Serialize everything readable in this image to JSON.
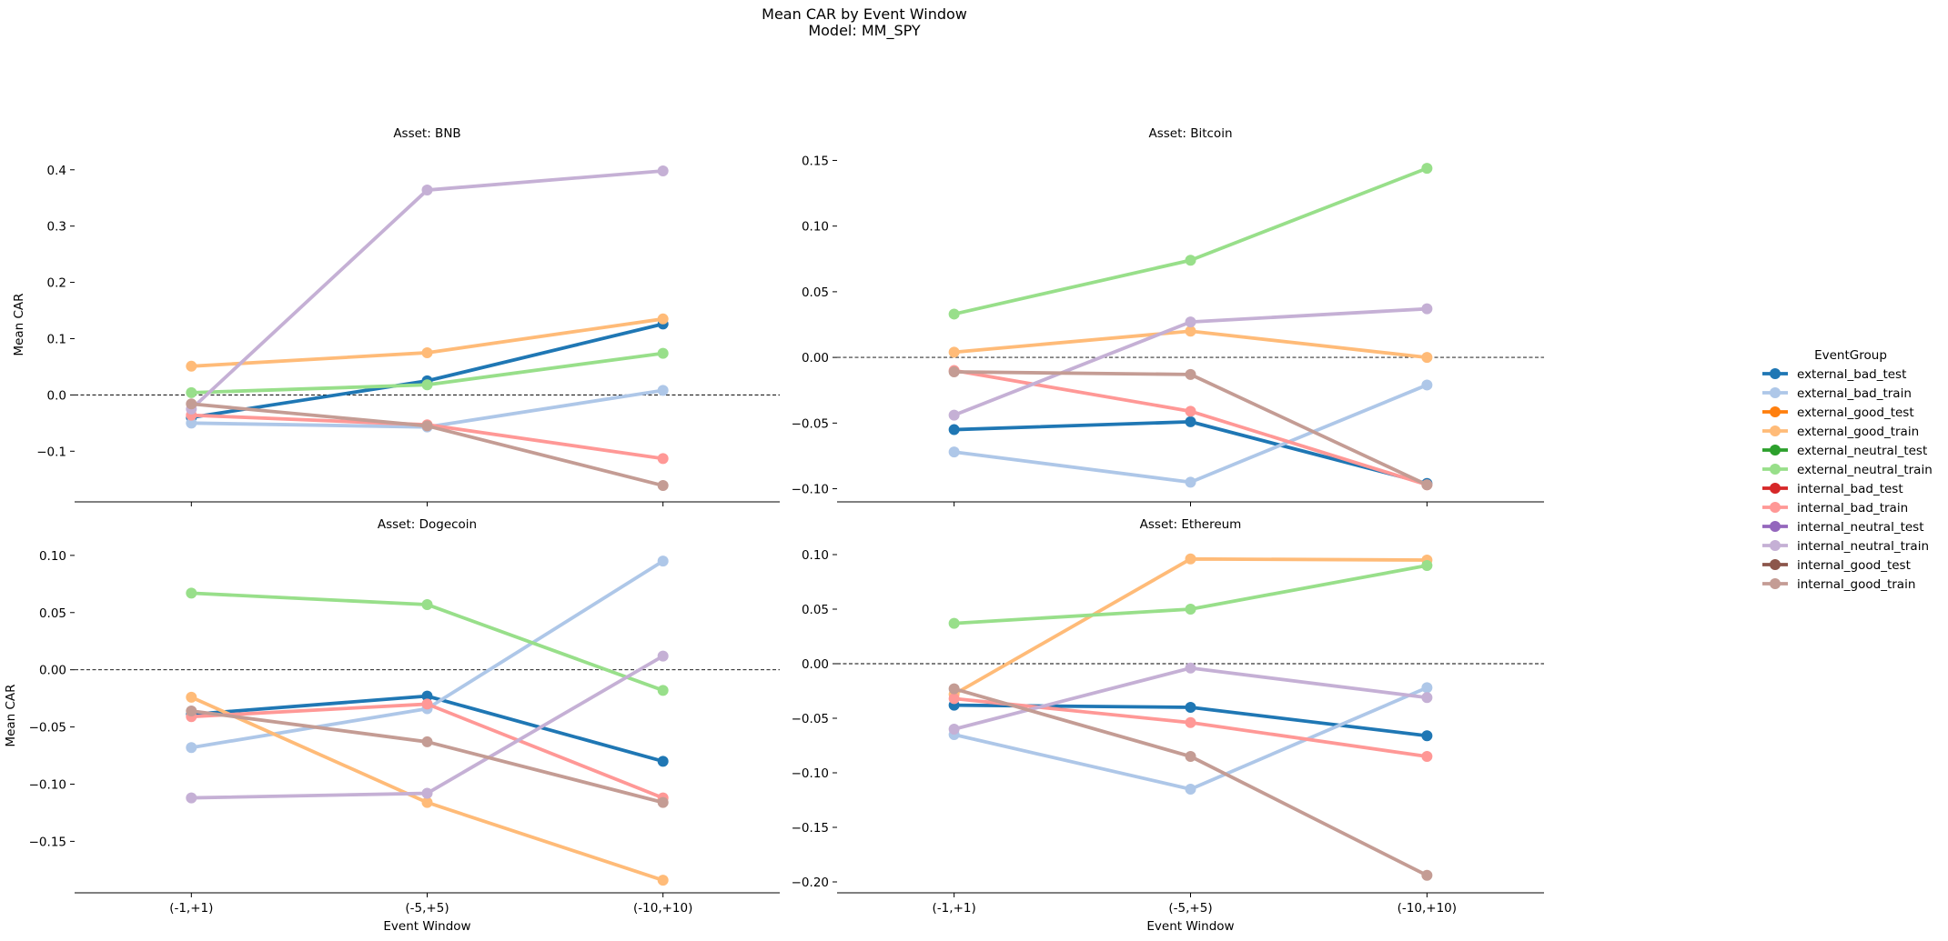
{
  "figure": {
    "title_line1": "Mean CAR by Event Window",
    "title_line2": "Model: MM_SPY",
    "xlabel": "Event Window",
    "ylabel": "Mean CAR"
  },
  "legend": {
    "title": "EventGroup",
    "entries": [
      {
        "label": "external_bad_test",
        "color": "#1f77b4"
      },
      {
        "label": "external_bad_train",
        "color": "#aec7e8"
      },
      {
        "label": "external_good_test",
        "color": "#ff7f0e"
      },
      {
        "label": "external_good_train",
        "color": "#ffbb78"
      },
      {
        "label": "external_neutral_test",
        "color": "#2ca02c"
      },
      {
        "label": "external_neutral_train",
        "color": "#98df8a"
      },
      {
        "label": "internal_bad_test",
        "color": "#d62728"
      },
      {
        "label": "internal_bad_train",
        "color": "#ff9896"
      },
      {
        "label": "internal_neutral_test",
        "color": "#9467bd"
      },
      {
        "label": "internal_neutral_train",
        "color": "#c5b0d5"
      },
      {
        "label": "internal_good_test",
        "color": "#8c564b"
      },
      {
        "label": "internal_good_train",
        "color": "#c49c94"
      }
    ]
  },
  "chart_data": [
    {
      "type": "line",
      "title": "Asset: BNB",
      "categories": [
        "(-1,+1)",
        "(-5,+5)",
        "(-10,+10)"
      ],
      "ylim": [
        -0.19,
        0.44
      ],
      "yticks": [
        -0.1,
        0.0,
        0.1,
        0.2,
        0.3,
        0.4
      ],
      "ytick_labels": [
        "−0.1",
        "0.0",
        "0.1",
        "0.2",
        "0.3",
        "0.4"
      ],
      "show_xlabel": false,
      "show_ylabel": true,
      "series": [
        {
          "name": "external_bad_test",
          "color": "#1f77b4",
          "values": [
            -0.04,
            0.025,
            0.126
          ]
        },
        {
          "name": "external_bad_train",
          "color": "#aec7e8",
          "values": [
            -0.05,
            -0.057,
            0.008
          ]
        },
        {
          "name": "external_good_train",
          "color": "#ffbb78",
          "values": [
            0.051,
            0.075,
            0.135
          ]
        },
        {
          "name": "external_neutral_train",
          "color": "#98df8a",
          "values": [
            0.004,
            0.018,
            0.074
          ]
        },
        {
          "name": "internal_bad_train",
          "color": "#ff9896",
          "values": [
            -0.036,
            -0.053,
            -0.113
          ]
        },
        {
          "name": "internal_neutral_train",
          "color": "#c5b0d5",
          "values": [
            -0.025,
            0.364,
            0.398
          ]
        },
        {
          "name": "internal_good_train",
          "color": "#c49c94",
          "values": [
            -0.016,
            -0.055,
            -0.161
          ]
        }
      ]
    },
    {
      "type": "line",
      "title": "Asset: Bitcoin",
      "categories": [
        "(-1,+1)",
        "(-5,+5)",
        "(-10,+10)"
      ],
      "ylim": [
        -0.11,
        0.16
      ],
      "yticks": [
        -0.1,
        -0.05,
        0.0,
        0.05,
        0.1,
        0.15
      ],
      "ytick_labels": [
        "−0.10",
        "−0.05",
        "0.00",
        "0.05",
        "0.10",
        "0.15"
      ],
      "show_xlabel": false,
      "show_ylabel": false,
      "series": [
        {
          "name": "external_bad_test",
          "color": "#1f77b4",
          "values": [
            -0.055,
            -0.049,
            -0.096
          ]
        },
        {
          "name": "external_bad_train",
          "color": "#aec7e8",
          "values": [
            -0.072,
            -0.095,
            -0.021
          ]
        },
        {
          "name": "external_good_train",
          "color": "#ffbb78",
          "values": [
            0.004,
            0.02,
            0.0
          ]
        },
        {
          "name": "external_neutral_train",
          "color": "#98df8a",
          "values": [
            0.033,
            0.074,
            0.144
          ]
        },
        {
          "name": "internal_bad_train",
          "color": "#ff9896",
          "values": [
            -0.01,
            -0.041,
            -0.097
          ]
        },
        {
          "name": "internal_neutral_train",
          "color": "#c5b0d5",
          "values": [
            -0.044,
            0.027,
            0.037
          ]
        },
        {
          "name": "internal_good_train",
          "color": "#c49c94",
          "values": [
            -0.011,
            -0.013,
            -0.097
          ]
        }
      ]
    },
    {
      "type": "line",
      "title": "Asset: Dogecoin",
      "categories": [
        "(-1,+1)",
        "(-5,+5)",
        "(-10,+10)"
      ],
      "ylim": [
        -0.195,
        0.115
      ],
      "yticks": [
        -0.15,
        -0.1,
        -0.05,
        0.0,
        0.05,
        0.1
      ],
      "ytick_labels": [
        "−0.15",
        "−0.10",
        "−0.05",
        "0.00",
        "0.05",
        "0.10"
      ],
      "show_xlabel": true,
      "show_ylabel": true,
      "series": [
        {
          "name": "external_bad_test",
          "color": "#1f77b4",
          "values": [
            -0.039,
            -0.023,
            -0.08
          ]
        },
        {
          "name": "external_bad_train",
          "color": "#aec7e8",
          "values": [
            -0.068,
            -0.034,
            0.095
          ]
        },
        {
          "name": "external_good_train",
          "color": "#ffbb78",
          "values": [
            -0.024,
            -0.116,
            -0.184
          ]
        },
        {
          "name": "external_neutral_train",
          "color": "#98df8a",
          "values": [
            0.067,
            0.057,
            -0.018
          ]
        },
        {
          "name": "internal_bad_train",
          "color": "#ff9896",
          "values": [
            -0.041,
            -0.03,
            -0.112
          ]
        },
        {
          "name": "internal_neutral_train",
          "color": "#c5b0d5",
          "values": [
            -0.112,
            -0.108,
            0.012
          ]
        },
        {
          "name": "internal_good_train",
          "color": "#c49c94",
          "values": [
            -0.036,
            -0.063,
            -0.116
          ]
        }
      ]
    },
    {
      "type": "line",
      "title": "Asset: Ethereum",
      "categories": [
        "(-1,+1)",
        "(-5,+5)",
        "(-10,+10)"
      ],
      "ylim": [
        -0.21,
        0.115
      ],
      "yticks": [
        -0.2,
        -0.15,
        -0.1,
        -0.05,
        0.0,
        0.05,
        0.1
      ],
      "ytick_labels": [
        "−0.20",
        "−0.15",
        "−0.10",
        "−0.05",
        "0.00",
        "0.05",
        "0.10"
      ],
      "show_xlabel": true,
      "show_ylabel": false,
      "series": [
        {
          "name": "external_bad_test",
          "color": "#1f77b4",
          "values": [
            -0.038,
            -0.04,
            -0.066
          ]
        },
        {
          "name": "external_bad_train",
          "color": "#aec7e8",
          "values": [
            -0.065,
            -0.115,
            -0.022
          ]
        },
        {
          "name": "external_good_train",
          "color": "#ffbb78",
          "values": [
            -0.028,
            0.096,
            0.095
          ]
        },
        {
          "name": "external_neutral_train",
          "color": "#98df8a",
          "values": [
            0.037,
            0.05,
            0.09
          ]
        },
        {
          "name": "internal_bad_train",
          "color": "#ff9896",
          "values": [
            -0.032,
            -0.054,
            -0.085
          ]
        },
        {
          "name": "internal_neutral_train",
          "color": "#c5b0d5",
          "values": [
            -0.06,
            -0.004,
            -0.031
          ]
        },
        {
          "name": "internal_good_train",
          "color": "#c49c94",
          "values": [
            -0.023,
            -0.085,
            -0.194
          ]
        }
      ]
    }
  ]
}
